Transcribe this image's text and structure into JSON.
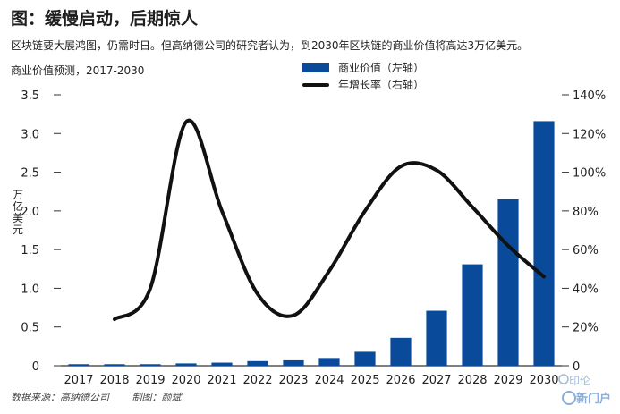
{
  "title": "图：缓慢启动，后期惊人",
  "subtitle": "区块链要大展鸿图，仍需时日。但高纳德公司的研究者认为，到2030年区块链的商业价值将高达3万亿美元。",
  "chart_label": "商业价值预测，2017-2030",
  "left_axis_label": [
    "万",
    "亿",
    "美",
    "元"
  ],
  "footer": {
    "source": "数据来源：高纳德公司",
    "credit": "制图：颜斌"
  },
  "watermark": {
    "name": "印伦",
    "brand": "新门户"
  },
  "colors": {
    "bar": "#0a4a9a",
    "line": "#111111",
    "axis": "#333333"
  },
  "chart_data": {
    "type": "bar+line",
    "categories": [
      "2017",
      "2018",
      "2019",
      "2020",
      "2021",
      "2022",
      "2023",
      "2024",
      "2025",
      "2026",
      "2027",
      "2028",
      "2029",
      "2030"
    ],
    "series": [
      {
        "name": "商业价值（左轴）",
        "type": "bar",
        "axis": "left",
        "values": [
          0.02,
          0.02,
          0.02,
          0.03,
          0.04,
          0.06,
          0.07,
          0.1,
          0.18,
          0.36,
          0.71,
          1.31,
          2.15,
          3.16
        ]
      },
      {
        "name": "年增长率（右轴）",
        "type": "line",
        "axis": "right",
        "unit": "%",
        "x": [
          "2018",
          "2019",
          "2020",
          "2021",
          "2022",
          "2023",
          "2024",
          "2025",
          "2026",
          "2027",
          "2028",
          "2029",
          "2030"
        ],
        "values": [
          24,
          40,
          126,
          80,
          37,
          26,
          49,
          80,
          103,
          101,
          82,
          62,
          46
        ]
      }
    ],
    "left_axis": {
      "ylim": [
        0,
        3.5
      ],
      "ticks": [
        "0",
        "0.5",
        "1.0",
        "1.5",
        "2.0",
        "2.5",
        "3.0",
        "3.5"
      ]
    },
    "right_axis": {
      "ylim": [
        0,
        140
      ],
      "ticks": [
        "0",
        "20%",
        "40%",
        "60%",
        "80%",
        "100%",
        "120%",
        "140%"
      ]
    },
    "legend": [
      "商业价值（左轴）",
      "年增长率（右轴）"
    ],
    "legend_position": "top-center"
  }
}
